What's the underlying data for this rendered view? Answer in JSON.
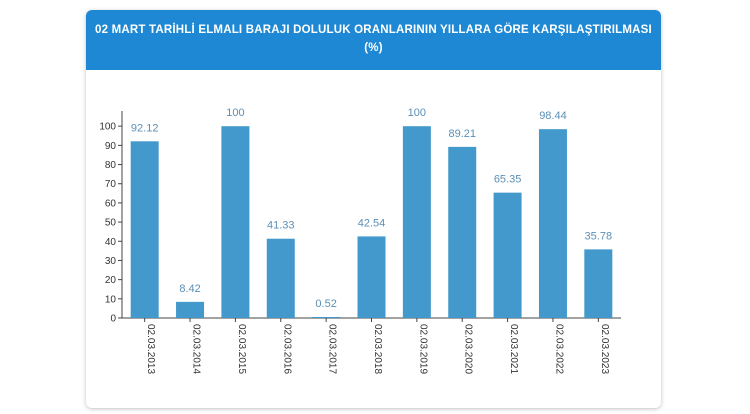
{
  "header": {
    "title_line1": "02 MART TARİHLİ ELMALI BARAJI DOLULUK ORANLARININ YILLARA GÖRE KARŞILAŞTIRILMASI",
    "title_line2": "(%)"
  },
  "colors": {
    "header_bg": "#1e88d4",
    "bar": "#4499cc",
    "data_label": "#5b8fb7",
    "axis": "#444444"
  },
  "chart_data": {
    "type": "bar",
    "title": "02 MART TARİHLİ ELMALI BARAJI DOLULUK ORANLARININ YILLARA GÖRE KARŞILAŞTIRILMASI (%)",
    "categories": [
      "02.03.2013",
      "02.03.2014",
      "02.03.2015",
      "02.03.2016",
      "02.03.2017",
      "02.03.2018",
      "02.03.2019",
      "02.03.2020",
      "02.03.2021",
      "02.03.2022",
      "02.03.2023"
    ],
    "values": [
      92.12,
      8.42,
      100,
      41.33,
      0.52,
      42.54,
      100,
      89.21,
      65.35,
      98.44,
      35.78
    ],
    "value_labels": [
      "92.12",
      "8.42",
      "100",
      "41.33",
      "0.52",
      "42.54",
      "100",
      "89.21",
      "65.35",
      "98.44",
      "35.78"
    ],
    "yticks": [
      0,
      10,
      20,
      30,
      40,
      50,
      60,
      70,
      80,
      90,
      100
    ],
    "ytick_labels": [
      "0",
      "10",
      "20",
      "30",
      "40",
      "50",
      "60",
      "70",
      "80",
      "90",
      "100"
    ],
    "ylim": [
      0,
      110
    ],
    "xlabel": "",
    "ylabel": "",
    "grid": false,
    "legend": "none"
  }
}
